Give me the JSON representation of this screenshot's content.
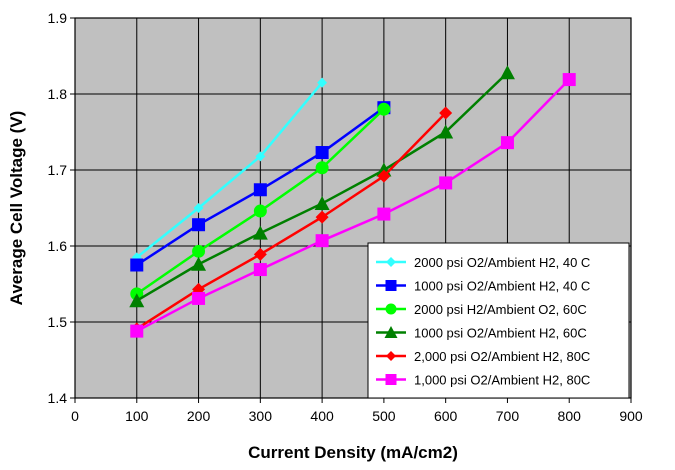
{
  "chart_data": {
    "type": "line",
    "xlabel": "Current Density (mA/cm2)",
    "ylabel": "Average Cell Voltage (V)",
    "xlim": [
      0,
      900
    ],
    "ylim": [
      1.4,
      1.9
    ],
    "x_ticks": [
      "0",
      "100",
      "200",
      "300",
      "400",
      "500",
      "600",
      "700",
      "800",
      "900"
    ],
    "y_ticks": [
      "1.4",
      "1.5",
      "1.6",
      "1.7",
      "1.8",
      "1.9"
    ],
    "plot_background": "#c0c0c0",
    "grid": true,
    "legend_position": "bottom-right",
    "series": [
      {
        "name": "2000 psi O2/Ambient H2, 40 C",
        "color": "#33ffff",
        "marker": "diamond",
        "x": [
          100,
          200,
          300,
          400
        ],
        "y": [
          1.585,
          1.65,
          1.718,
          1.815
        ]
      },
      {
        "name": "1000 psi O2/Ambient H2, 40 C",
        "color": "#0000ff",
        "marker": "square",
        "x": [
          100,
          200,
          300,
          400,
          500
        ],
        "y": [
          1.575,
          1.628,
          1.674,
          1.723,
          1.782
        ]
      },
      {
        "name": "2000 psi H2/Ambient O2, 60C",
        "color": "#00ff00",
        "marker": "circle",
        "x": [
          100,
          200,
          300,
          400,
          500
        ],
        "y": [
          1.537,
          1.593,
          1.646,
          1.703,
          1.78
        ]
      },
      {
        "name": "1000 psi O2/Ambient H2, 60C",
        "color": "#008000",
        "marker": "triangle",
        "x": [
          100,
          200,
          300,
          400,
          500,
          600,
          700
        ],
        "y": [
          1.528,
          1.576,
          1.617,
          1.656,
          1.7,
          1.75,
          1.828
        ]
      },
      {
        "name": "2,000 psi O2/Ambient H2, 80C",
        "color": "#ff0000",
        "marker": "diamond",
        "x": [
          100,
          200,
          300,
          400,
          500,
          600
        ],
        "y": [
          1.491,
          1.543,
          1.589,
          1.638,
          1.692,
          1.775
        ]
      },
      {
        "name": "1,000 psi O2/Ambient H2, 80C",
        "color": "#ff00ff",
        "marker": "square",
        "x": [
          100,
          200,
          300,
          400,
          500,
          600,
          700,
          800
        ],
        "y": [
          1.488,
          1.531,
          1.569,
          1.607,
          1.642,
          1.683,
          1.736,
          1.819
        ]
      }
    ]
  }
}
